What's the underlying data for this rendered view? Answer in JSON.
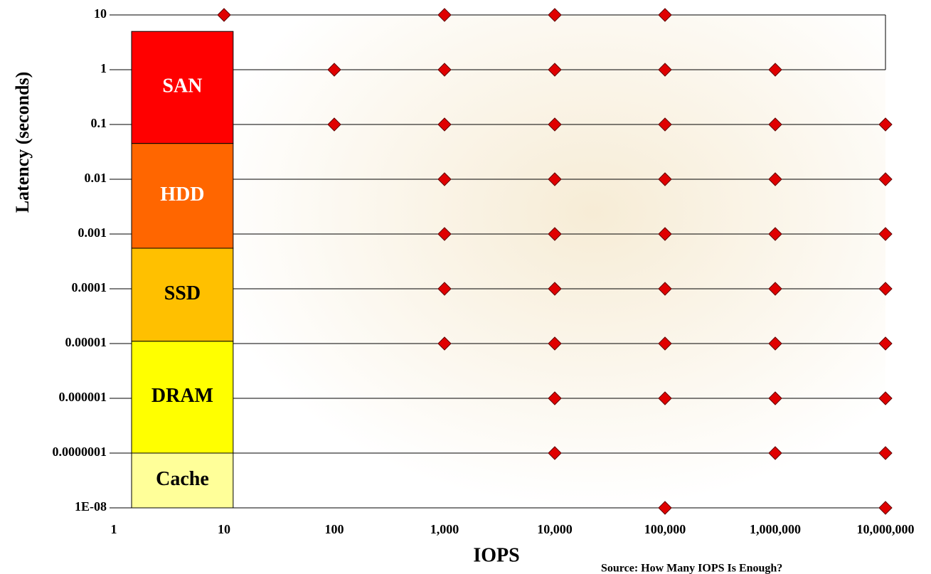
{
  "chart_data": {
    "type": "scatter",
    "x_label": "IOPS",
    "y_label": "Latency (seconds)",
    "annotation": "Source: How Many IOPS Is Enough?",
    "x_log": true,
    "y_log": true,
    "grid": true,
    "xlim": [
      1,
      10000000
    ],
    "xticks": [
      1,
      10,
      100,
      {
        "value": 1000,
        "label": "1,000"
      },
      {
        "value": 10000,
        "label": "10,000"
      },
      {
        "value": 100000,
        "label": "100,000"
      },
      {
        "value": 1000000,
        "label": "1,000,000"
      },
      {
        "value": 10000000,
        "label": "10,000,000"
      }
    ],
    "ylim": [
      1e-08,
      10
    ],
    "yticks": [
      10,
      1,
      0.1,
      0.01,
      0.001,
      0.0001,
      1e-05,
      1e-06,
      {
        "value": 1e-07,
        "label": "0.0000001"
      },
      {
        "value": 1e-08,
        "label": "1E-08"
      }
    ],
    "bands": {
      "x": [
        1.45,
        12.1
      ],
      "items": [
        {
          "name": "SAN",
          "color": "#ff0000",
          "text_color": "#ffffff",
          "range": [
            0.045,
            5
          ]
        },
        {
          "name": "HDD",
          "color": "#ff6600",
          "text_color": "#ffffff",
          "range": [
            0.00055,
            0.045
          ]
        },
        {
          "name": "SSD",
          "color": "#ffc000",
          "text_color": "#000000",
          "range": [
            1.1e-05,
            0.00055
          ]
        },
        {
          "name": "DRAM",
          "color": "#ffff00",
          "text_color": "#000000",
          "range": [
            1e-07,
            1.1e-05
          ]
        },
        {
          "name": "Cache",
          "color": "#ffff99",
          "text_color": "#000000",
          "range": [
            1e-08,
            1e-07
          ]
        }
      ]
    },
    "marker_color": "#e00000",
    "marker_edge": "#600000",
    "x": [
      10,
      1000,
      10000,
      100000,
      100,
      1000,
      10000,
      100000,
      1000000,
      100,
      1000,
      10000,
      100000,
      1000000,
      10000000,
      1000,
      10000,
      100000,
      1000000,
      10000000,
      1000,
      10000,
      100000,
      1000000,
      10000000,
      1000,
      10000,
      100000,
      1000000,
      10000000,
      1000,
      10000,
      100000,
      1000000,
      10000000,
      10000,
      100000,
      1000000,
      10000000,
      10000,
      1000000,
      10000000,
      100000,
      10000000
    ],
    "y": [
      10,
      10,
      10,
      10,
      1,
      1,
      1,
      1,
      1,
      0.1,
      0.1,
      0.1,
      0.1,
      0.1,
      0.1,
      0.01,
      0.01,
      0.01,
      0.01,
      0.01,
      0.001,
      0.001,
      0.001,
      0.001,
      0.001,
      0.0001,
      0.0001,
      0.0001,
      0.0001,
      0.0001,
      1e-05,
      1e-05,
      1e-05,
      1e-05,
      1e-05,
      1e-06,
      1e-06,
      1e-06,
      1e-06,
      1e-07,
      1e-07,
      1e-07,
      1e-08,
      1e-08
    ]
  }
}
